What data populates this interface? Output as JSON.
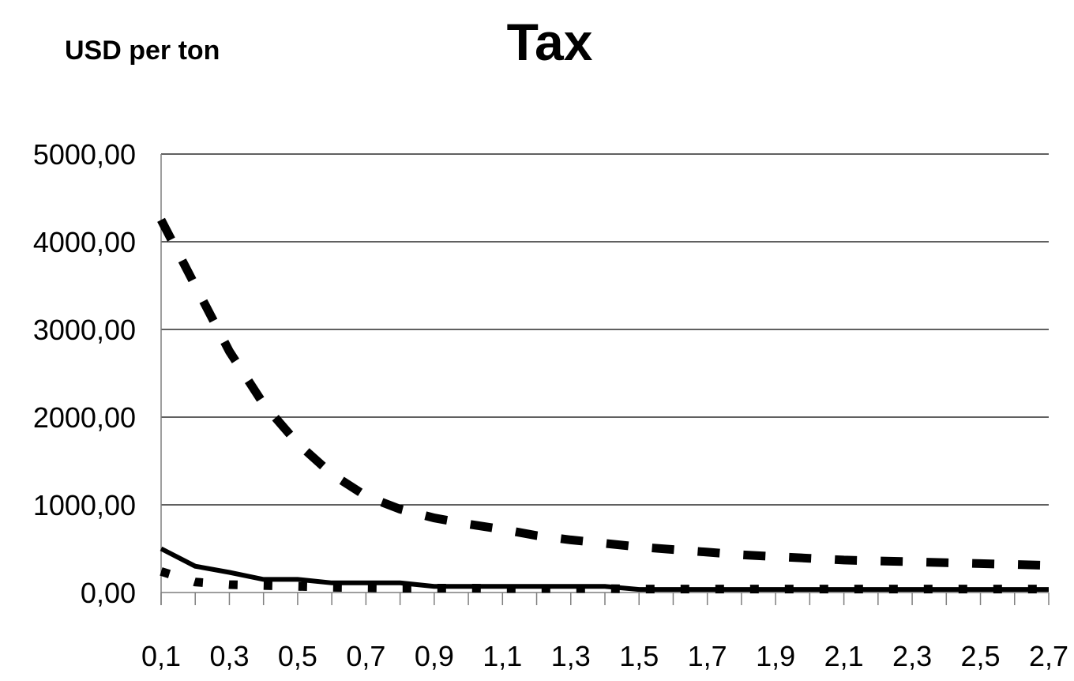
{
  "chart_data": {
    "type": "line",
    "title": "Tax",
    "ylabel": "USD per ton",
    "xlabel": "",
    "x": [
      0.1,
      0.2,
      0.3,
      0.4,
      0.5,
      0.6,
      0.7,
      0.8,
      0.9,
      1.0,
      1.1,
      1.2,
      1.3,
      1.4,
      1.5,
      1.6,
      1.7,
      1.8,
      1.9,
      2.0,
      2.1,
      2.2,
      2.3,
      2.4,
      2.5,
      2.6,
      2.7
    ],
    "x_tick_labels": [
      "0,1",
      "0,3",
      "0,5",
      "0,7",
      "0,9",
      "1,1",
      "1,3",
      "1,5",
      "1,7",
      "1,9",
      "2,1",
      "2,3",
      "2,5",
      "2,7"
    ],
    "ylim": [
      0,
      5000
    ],
    "y_tick_labels": [
      "0,00",
      "1000,00",
      "2000,00",
      "3000,00",
      "4000,00",
      "5000,00"
    ],
    "grid": true,
    "legend": "none",
    "series": [
      {
        "style": "dashed",
        "values": [
          4250,
          3500,
          2750,
          2150,
          1700,
          1350,
          1100,
          950,
          850,
          780,
          720,
          650,
          600,
          560,
          520,
          490,
          460,
          430,
          410,
          390,
          370,
          360,
          350,
          340,
          330,
          320,
          310
        ]
      },
      {
        "style": "solid",
        "values": [
          500,
          300,
          230,
          150,
          150,
          110,
          110,
          110,
          70,
          70,
          70,
          70,
          70,
          70,
          35,
          35,
          35,
          35,
          35,
          35,
          35,
          35,
          35,
          35,
          35,
          35,
          35
        ]
      },
      {
        "style": "dotted",
        "values": [
          240,
          120,
          90,
          80,
          70,
          60,
          55,
          50,
          50,
          50,
          45,
          45,
          45,
          45,
          40,
          40,
          40,
          40,
          40,
          40,
          40,
          40,
          40,
          40,
          40,
          40,
          40
        ]
      }
    ]
  }
}
